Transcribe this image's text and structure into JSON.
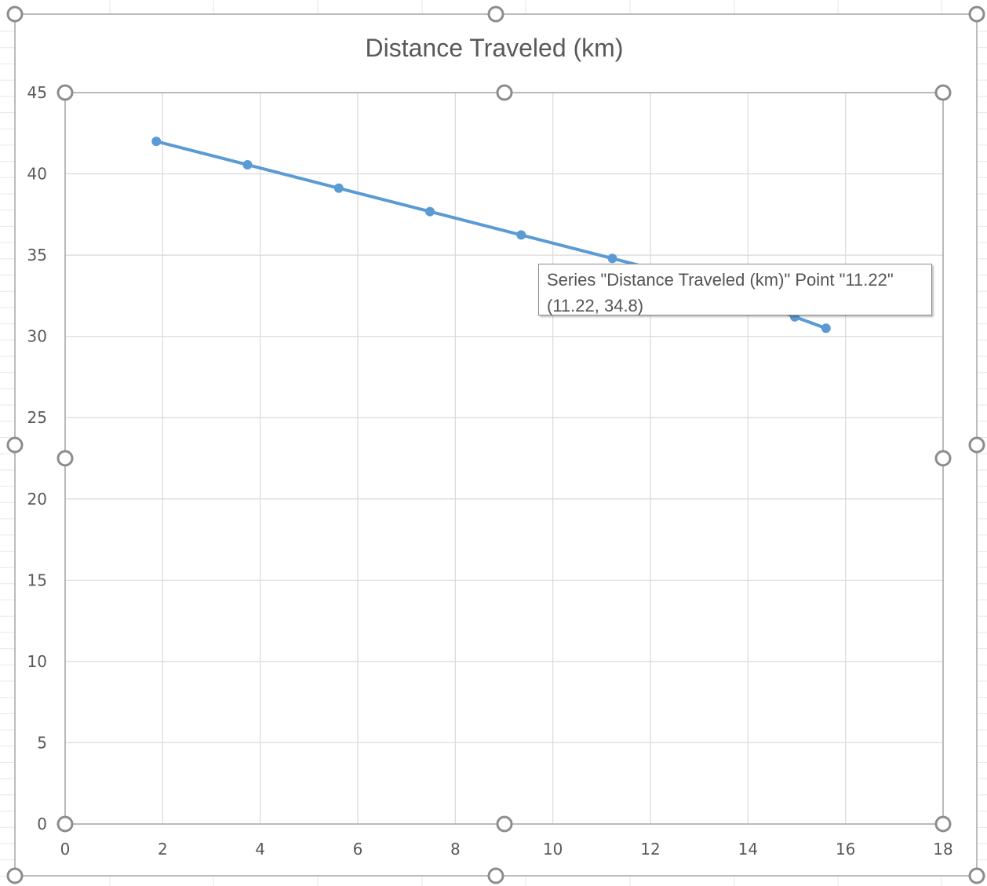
{
  "chart_data": {
    "type": "scatter",
    "title": "Distance Traveled  (km)",
    "xlabel": "",
    "ylabel": "",
    "xlim": [
      0,
      18
    ],
    "ylim": [
      0,
      45
    ],
    "x_ticks": [
      "0",
      "2",
      "4",
      "6",
      "8",
      "10",
      "12",
      "14",
      "16",
      "18"
    ],
    "y_ticks": [
      "0",
      "5",
      "10",
      "15",
      "20",
      "25",
      "30",
      "35",
      "40",
      "45"
    ],
    "grid": true,
    "legend": "none",
    "series": [
      {
        "color": "#5b9bd5",
        "points": [
          {
            "x": 1.87,
            "y": 42.0
          },
          {
            "x": 3.74,
            "y": 40.56
          },
          {
            "x": 5.61,
            "y": 39.12
          },
          {
            "x": 7.48,
            "y": 37.68
          },
          {
            "x": 9.35,
            "y": 36.24
          },
          {
            "x": 11.22,
            "y": 34.8
          },
          {
            "x": 13.09,
            "y": 33.36
          },
          {
            "x": 14.96,
            "y": 31.2
          },
          {
            "x": 15.6,
            "y": 30.5
          }
        ]
      }
    ]
  },
  "tooltip": {
    "line1": "Series \"Distance Traveled  (km)\" Point \"11.22\"",
    "line2": "(11.22, 34.8)"
  },
  "colors": {
    "series": "#5b9bd5",
    "grid": "#d9d9d9",
    "axis_text": "#595959",
    "title_text": "#595959",
    "selection_handle": "#8c8c8c"
  }
}
